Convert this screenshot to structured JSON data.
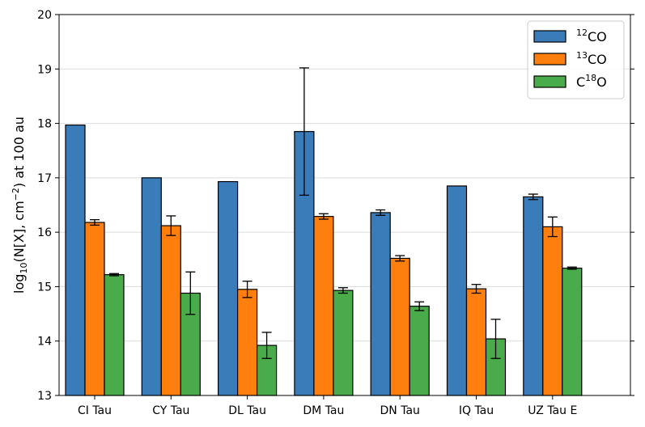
{
  "chart_data": {
    "type": "bar",
    "categories": [
      "CI Tau",
      "CY Tau",
      "DL Tau",
      "DM Tau",
      "DN Tau",
      "IQ Tau",
      "UZ Tau E"
    ],
    "series": [
      {
        "name": "¹²CO",
        "sup": "12",
        "base": "CO",
        "color": "#3a7bba",
        "values": [
          17.97,
          17.0,
          16.93,
          17.85,
          16.36,
          16.85,
          16.65
        ],
        "errors": [
          0,
          0,
          0,
          1.17,
          0.05,
          0,
          0.05
        ]
      },
      {
        "name": "¹³CO",
        "sup": "13",
        "base": "CO",
        "color": "#ff7f0e",
        "values": [
          16.18,
          16.12,
          14.95,
          16.29,
          15.52,
          14.96,
          16.1
        ],
        "errors": [
          0.05,
          0.18,
          0.15,
          0.05,
          0.05,
          0.08,
          0.18
        ]
      },
      {
        "name": "C¹⁸O",
        "sup": "18",
        "base": "C",
        "tail": "O",
        "color": "#4aab4a",
        "values": [
          15.22,
          14.88,
          13.92,
          14.93,
          14.64,
          14.04,
          15.34
        ],
        "errors": [
          0.02,
          0.39,
          0.24,
          0.05,
          0.08,
          0.36,
          0.02
        ]
      }
    ],
    "ylabel": "log10(N[X], cm^-2) at 100 au",
    "ylabel_parts": {
      "pre": "log",
      "sub": "10",
      "mid": "(N[X], cm",
      "sup": "−2",
      "post": ") at 100 au"
    },
    "ylim": [
      13,
      20
    ],
    "yticks": [
      "13",
      "14",
      "15",
      "16",
      "17",
      "18",
      "19",
      "20"
    ],
    "grid": "horizontal",
    "legend_position": "top-right"
  }
}
